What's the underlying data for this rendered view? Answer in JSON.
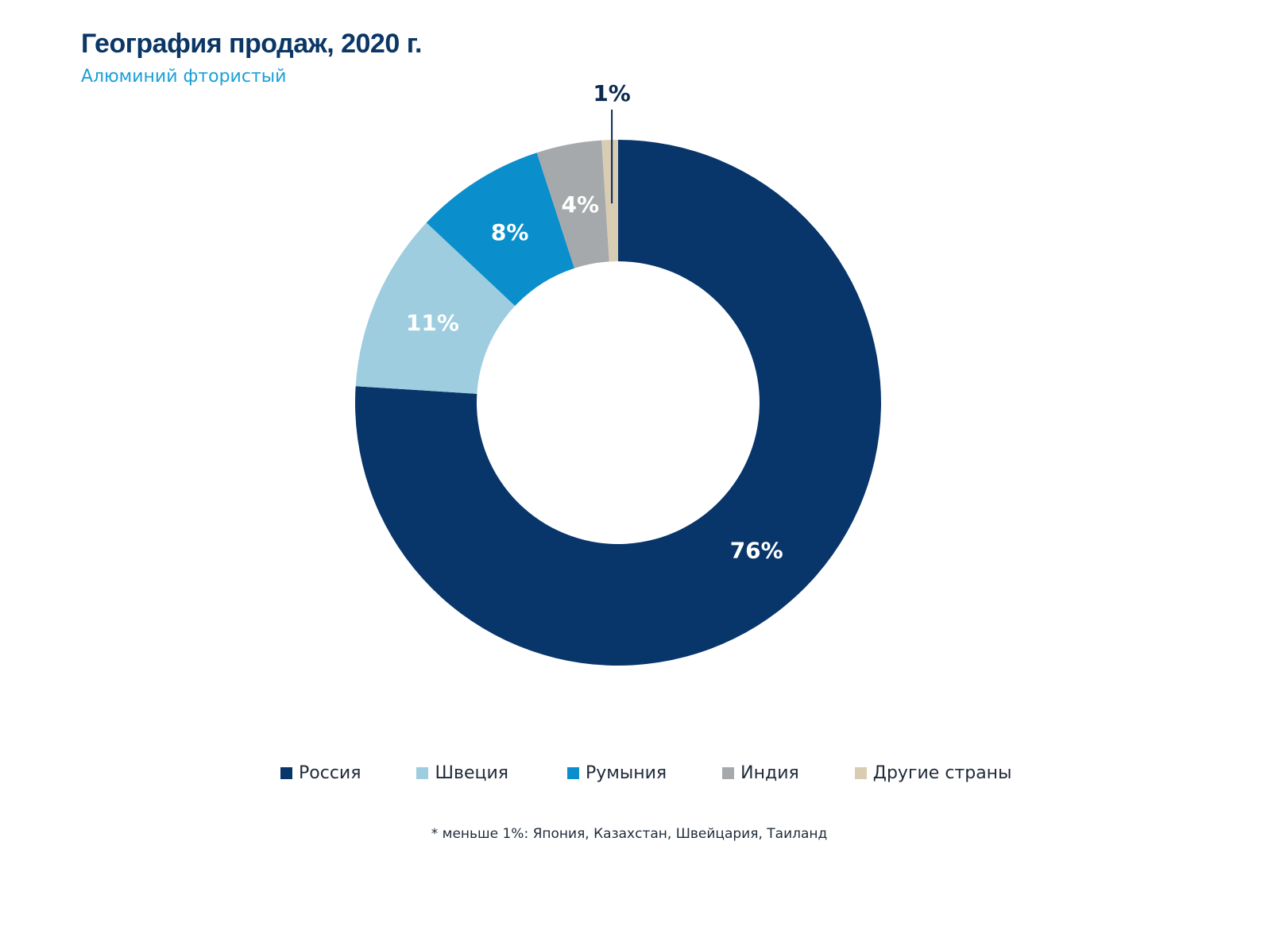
{
  "chart_data": {
    "type": "pie",
    "title": "География продаж, 2020 г.",
    "subtitle": "Алюминий фтористый",
    "categories": [
      "Россия",
      "Швеция",
      "Румыния",
      "Индия",
      "Другие страны"
    ],
    "values": [
      76,
      11,
      8,
      4,
      1
    ],
    "labels": [
      "76%",
      "11%",
      "8%",
      "4%",
      "1%"
    ],
    "colors": [
      "#08356a",
      "#9dcddf",
      "#0a8fcc",
      "#a6a9ab",
      "#d8ccb3"
    ],
    "legend": "bottom",
    "footnote": "* меньше 1%: Япония, Казахстан, Швейцария, Таиланд"
  }
}
